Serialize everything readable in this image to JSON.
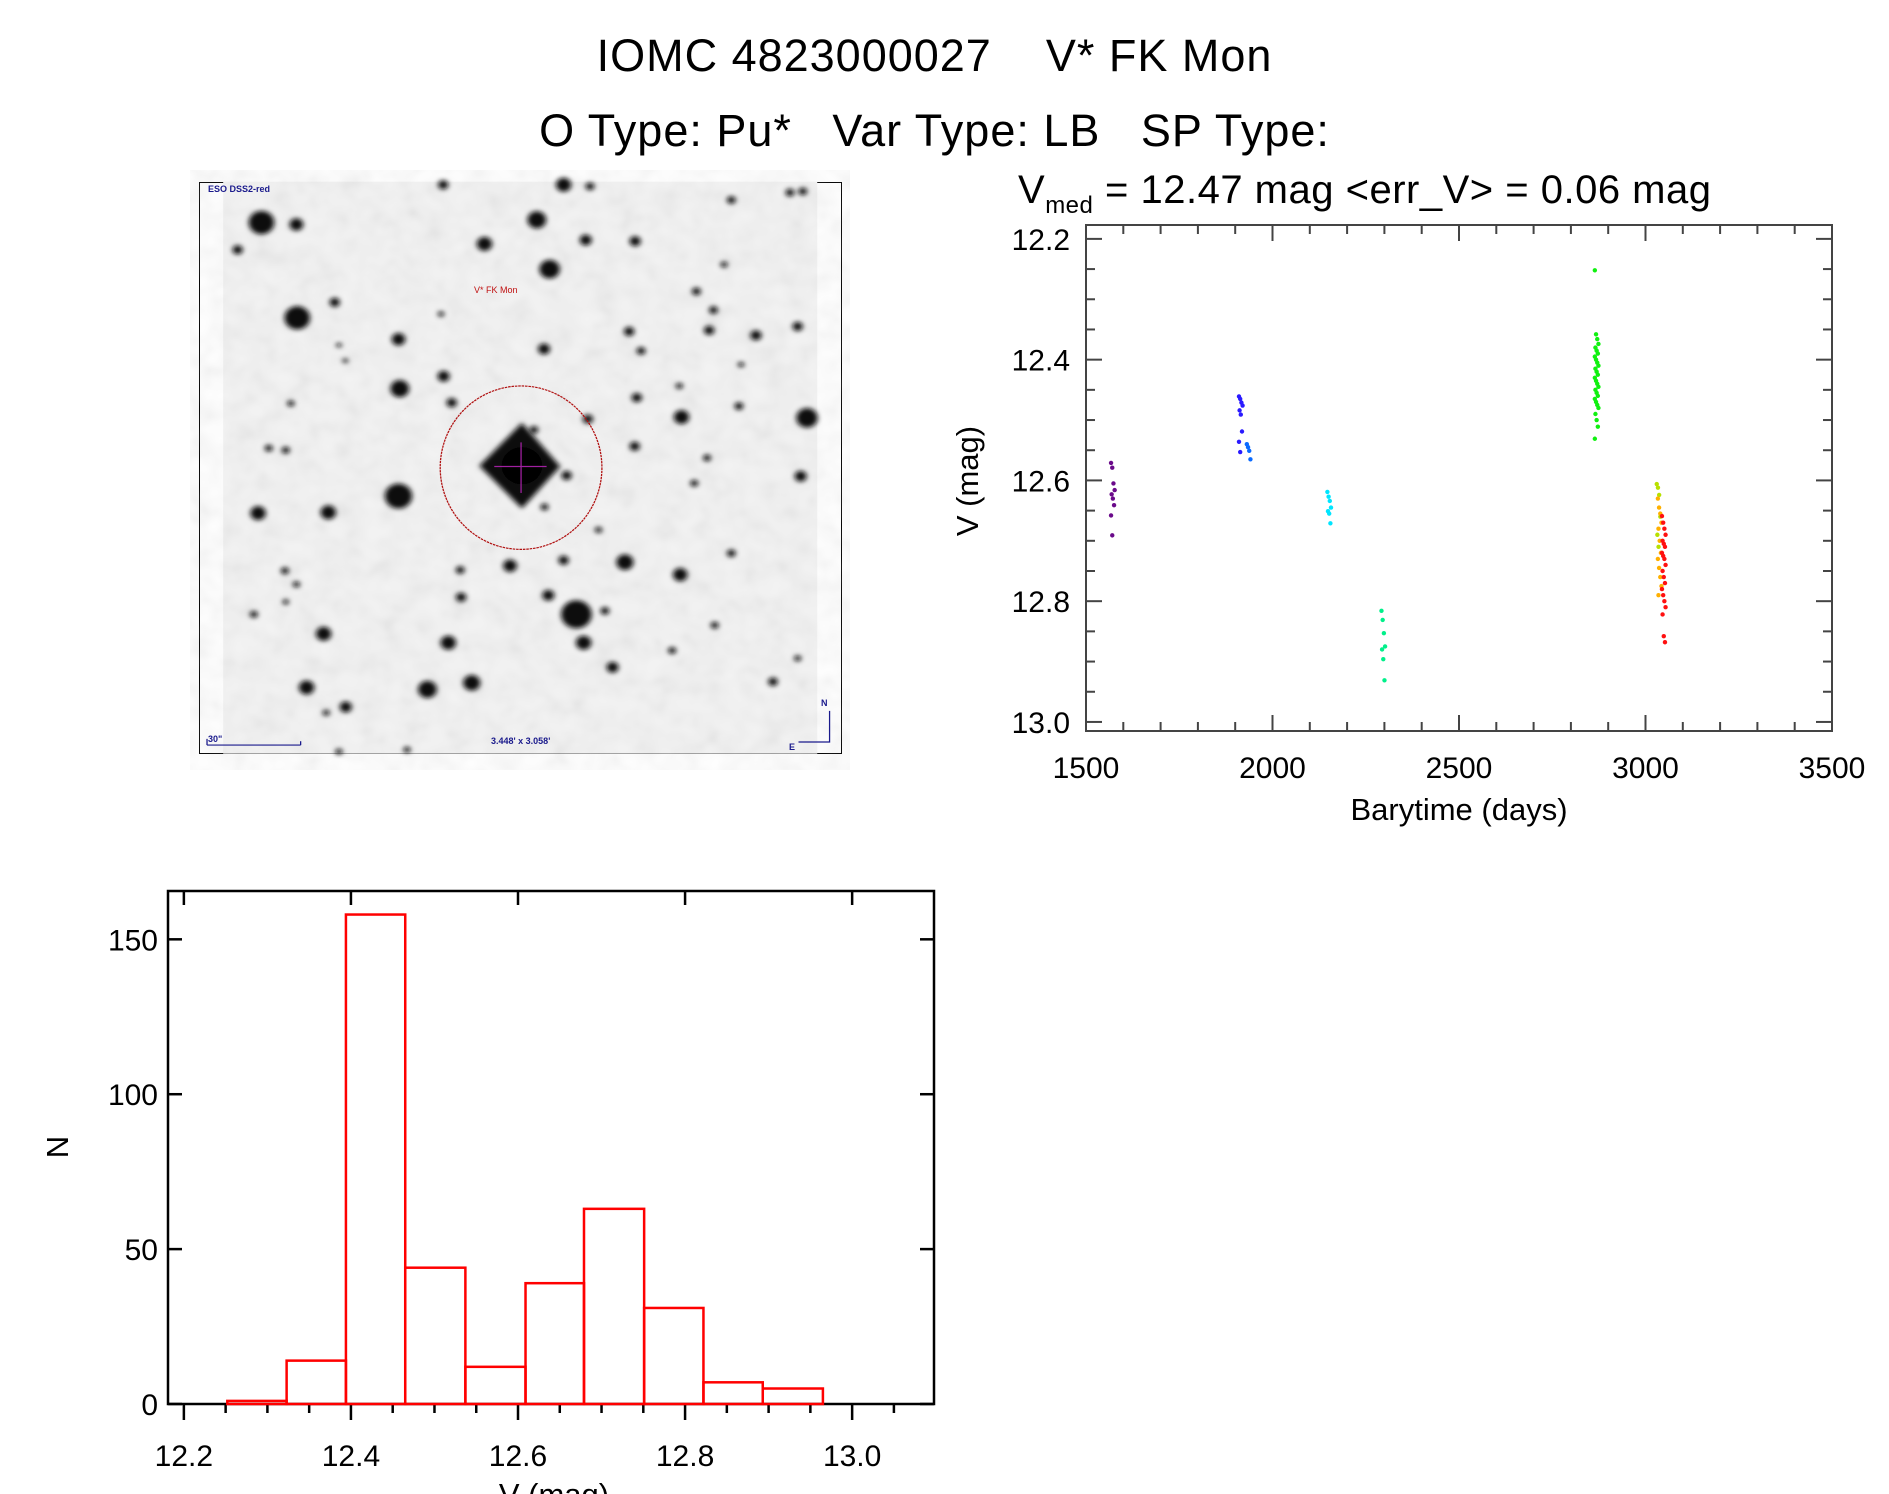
{
  "header": {
    "title_line1": "IOMC 4823000027    V* FK Mon",
    "title_line2": "O Type: Pu*   Var Type: LB   SP Type:",
    "vmed_main": "V",
    "vmed_sub": "med",
    "vmed_rest": " = 12.47 mag <err_V> = 0.06 mag"
  },
  "finder_image": {
    "survey_label": "ESO DSS2-red",
    "target_label": "V* FK Mon",
    "scale_label": "30\"",
    "fov_label": "3.448' x 3.058'",
    "north_label": "N",
    "east_label": "E",
    "circle_color": "#b01010",
    "label_color": "#1a1a8c"
  },
  "chart_data": [
    {
      "type": "scatter",
      "title": "",
      "xlabel": "Barytime (days)",
      "ylabel": "V (mag)",
      "xlim": [
        1500,
        3500
      ],
      "ylim": [
        13.015,
        12.177
      ],
      "y_inverted": true,
      "xticks": [
        1500,
        2000,
        2500,
        3000,
        3500
      ],
      "xtick_labels": [
        "1500",
        "2000",
        "2500",
        "3000",
        "3500"
      ],
      "yticks": [
        12.2,
        12.4,
        12.6,
        12.8,
        13.0
      ],
      "ytick_labels": [
        "12.2",
        "12.4",
        "12.6",
        "12.8",
        "13.0"
      ],
      "grid": false,
      "series": [
        {
          "name": "group-1",
          "color": "#6a0a8a",
          "x": 1572,
          "y": [
            12.571,
            12.579,
            12.605,
            12.616,
            12.623,
            12.63,
            12.641,
            12.658,
            12.691
          ]
        },
        {
          "name": "group-2",
          "color": "#2a1aff",
          "x": 1915,
          "y": [
            12.461,
            12.465,
            12.471,
            12.476,
            12.484,
            12.491,
            12.519,
            12.536,
            12.553
          ]
        },
        {
          "name": "group-3",
          "color": "#0a6aff",
          "x": 1936,
          "y": [
            12.54,
            12.545,
            12.551,
            12.565
          ]
        },
        {
          "name": "group-4",
          "color": "#00e5ff",
          "x": 2152,
          "y": [
            12.619,
            12.627,
            12.634,
            12.645,
            12.651,
            12.655,
            12.671
          ]
        },
        {
          "name": "group-5",
          "color": "#00f08a",
          "x": 2297,
          "y": [
            12.816,
            12.831,
            12.853,
            12.875,
            12.88,
            12.896,
            12.931
          ]
        },
        {
          "name": "group-6",
          "color": "#10f010",
          "x": 2869,
          "y": [
            12.252,
            12.358,
            12.366,
            12.374,
            12.38,
            12.385,
            12.39,
            12.395,
            12.4,
            12.405,
            12.41,
            12.415,
            12.42,
            12.425,
            12.43,
            12.435,
            12.44,
            12.445,
            12.45,
            12.455,
            12.46,
            12.465,
            12.47,
            12.475,
            12.48,
            12.49,
            12.5,
            12.511,
            12.531
          ]
        },
        {
          "name": "group-7",
          "color": "#b8e000",
          "x": 3035,
          "y": [
            12.606,
            12.612,
            12.624,
            12.66,
            12.69,
            12.71
          ]
        },
        {
          "name": "group-8",
          "color": "#ffb000",
          "x": 3038,
          "y": [
            12.63,
            12.645,
            12.655,
            12.67,
            12.68,
            12.7,
            12.72,
            12.73,
            12.745,
            12.76,
            12.775,
            12.79
          ]
        },
        {
          "name": "group-9",
          "color": "#ff1010",
          "x": 3049,
          "y": [
            12.659,
            12.67,
            12.68,
            12.69,
            12.7,
            12.705,
            12.71,
            12.72,
            12.725,
            12.73,
            12.74,
            12.75,
            12.76,
            12.77,
            12.78,
            12.79,
            12.8,
            12.81,
            12.822,
            12.858,
            12.868
          ]
        }
      ]
    },
    {
      "type": "bar",
      "histogram": true,
      "xlabel": "V (mag)",
      "ylabel": "N",
      "xlim": [
        12.181,
        13.098
      ],
      "ylim": [
        0,
        165.6
      ],
      "xticks": [
        12.2,
        12.4,
        12.6,
        12.8,
        13.0
      ],
      "xtick_labels": [
        "12.2",
        "12.4",
        "12.6",
        "12.8",
        "13.0"
      ],
      "yticks": [
        0,
        50,
        100,
        150
      ],
      "ytick_labels": [
        "0",
        "50",
        "100",
        "150"
      ],
      "bin_edges": [
        12.252,
        12.323,
        12.394,
        12.465,
        12.537,
        12.609,
        12.679,
        12.751,
        12.822,
        12.893,
        12.965
      ],
      "values": [
        1,
        14,
        158,
        44,
        12,
        39,
        63,
        31,
        7,
        5
      ],
      "color": "#ff0000",
      "grid": false
    }
  ]
}
